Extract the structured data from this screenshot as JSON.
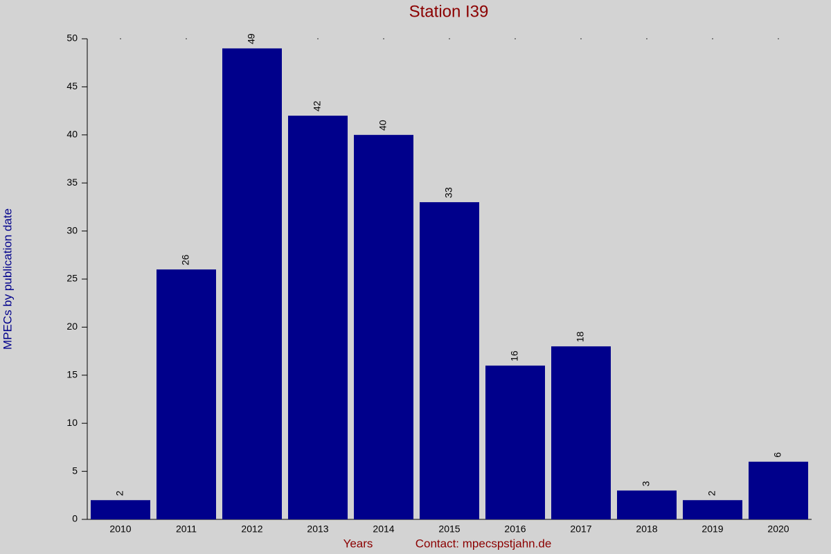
{
  "chart_data": {
    "type": "bar",
    "title": "Station I39",
    "y_label": "MPECs by publication date",
    "x_label": "Years",
    "credit": "Contact: mpecspstjahn.de",
    "categories": [
      "2010",
      "2011",
      "2012",
      "2013",
      "2014",
      "2015",
      "2016",
      "2017",
      "2018",
      "2019",
      "2020"
    ],
    "values": [
      2,
      26,
      49,
      42,
      40,
      33,
      16,
      18,
      3,
      2,
      6
    ],
    "color": "#00008b",
    "ylim": [
      0,
      50
    ],
    "yticks": [
      0,
      5,
      10,
      15,
      20,
      25,
      30,
      35,
      40,
      45,
      50
    ],
    "grid": false
  }
}
